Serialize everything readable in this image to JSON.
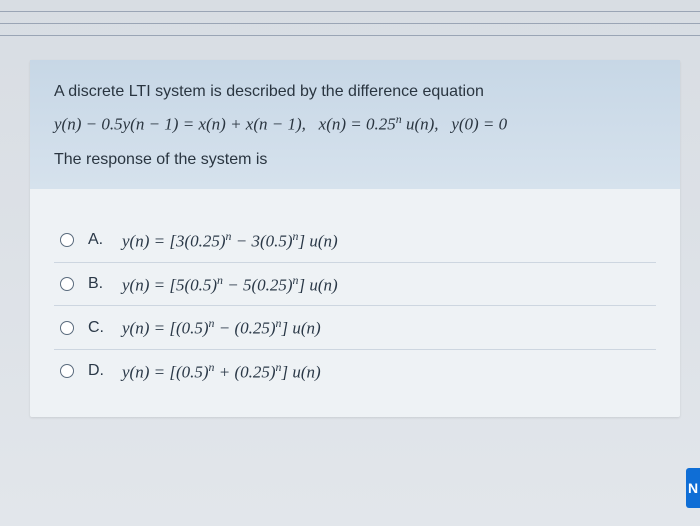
{
  "question": {
    "prompt_line1": "A discrete LTI system is described by the difference equation",
    "equation_html": "<i>y</i>(<i>n</i>) − 0.5<i>y</i>(<i>n</i> − 1) = <i>x</i>(<i>n</i>) + <i>x</i>(<i>n</i> − 1),&nbsp;&nbsp; <i>x</i>(<i>n</i>) = 0.25<sup><i>n</i></sup> <i>u</i>(<i>n</i>),&nbsp;&nbsp; <i>y</i>(0) = 0",
    "prompt_line2": "The response of the system is"
  },
  "choices": [
    {
      "label": "A.",
      "html": "<i>y</i>(<i>n</i>) = [3(0.25)<sup><i>n</i></sup> − 3(0.5)<sup><i>n</i></sup>] <i>u</i>(<i>n</i>)"
    },
    {
      "label": "B.",
      "html": "<i>y</i>(<i>n</i>) = [5(0.5)<sup><i>n</i></sup> − 5(0.25)<sup><i>n</i></sup>] <i>u</i>(<i>n</i>)"
    },
    {
      "label": "C.",
      "html": "<i>y</i>(<i>n</i>) = [(0.5)<sup><i>n</i></sup> − (0.25)<sup><i>n</i></sup>] <i>u</i>(<i>n</i>)"
    },
    {
      "label": "D.",
      "html": "<i>y</i>(<i>n</i>) = [(0.5)<sup><i>n</i></sup> + (0.25)<sup><i>n</i></sup>] <i>u</i>(<i>n</i>)"
    }
  ],
  "next_button_label": "N",
  "colors": {
    "header_bg_top": "#c7d7e6",
    "header_bg_bottom": "#d6e2ed",
    "card_bg": "#eef2f5",
    "body_bg_top": "#d8dde3",
    "divider": "#cdd6e0",
    "text": "#2a3847",
    "next_btn": "#0f6ed6"
  }
}
